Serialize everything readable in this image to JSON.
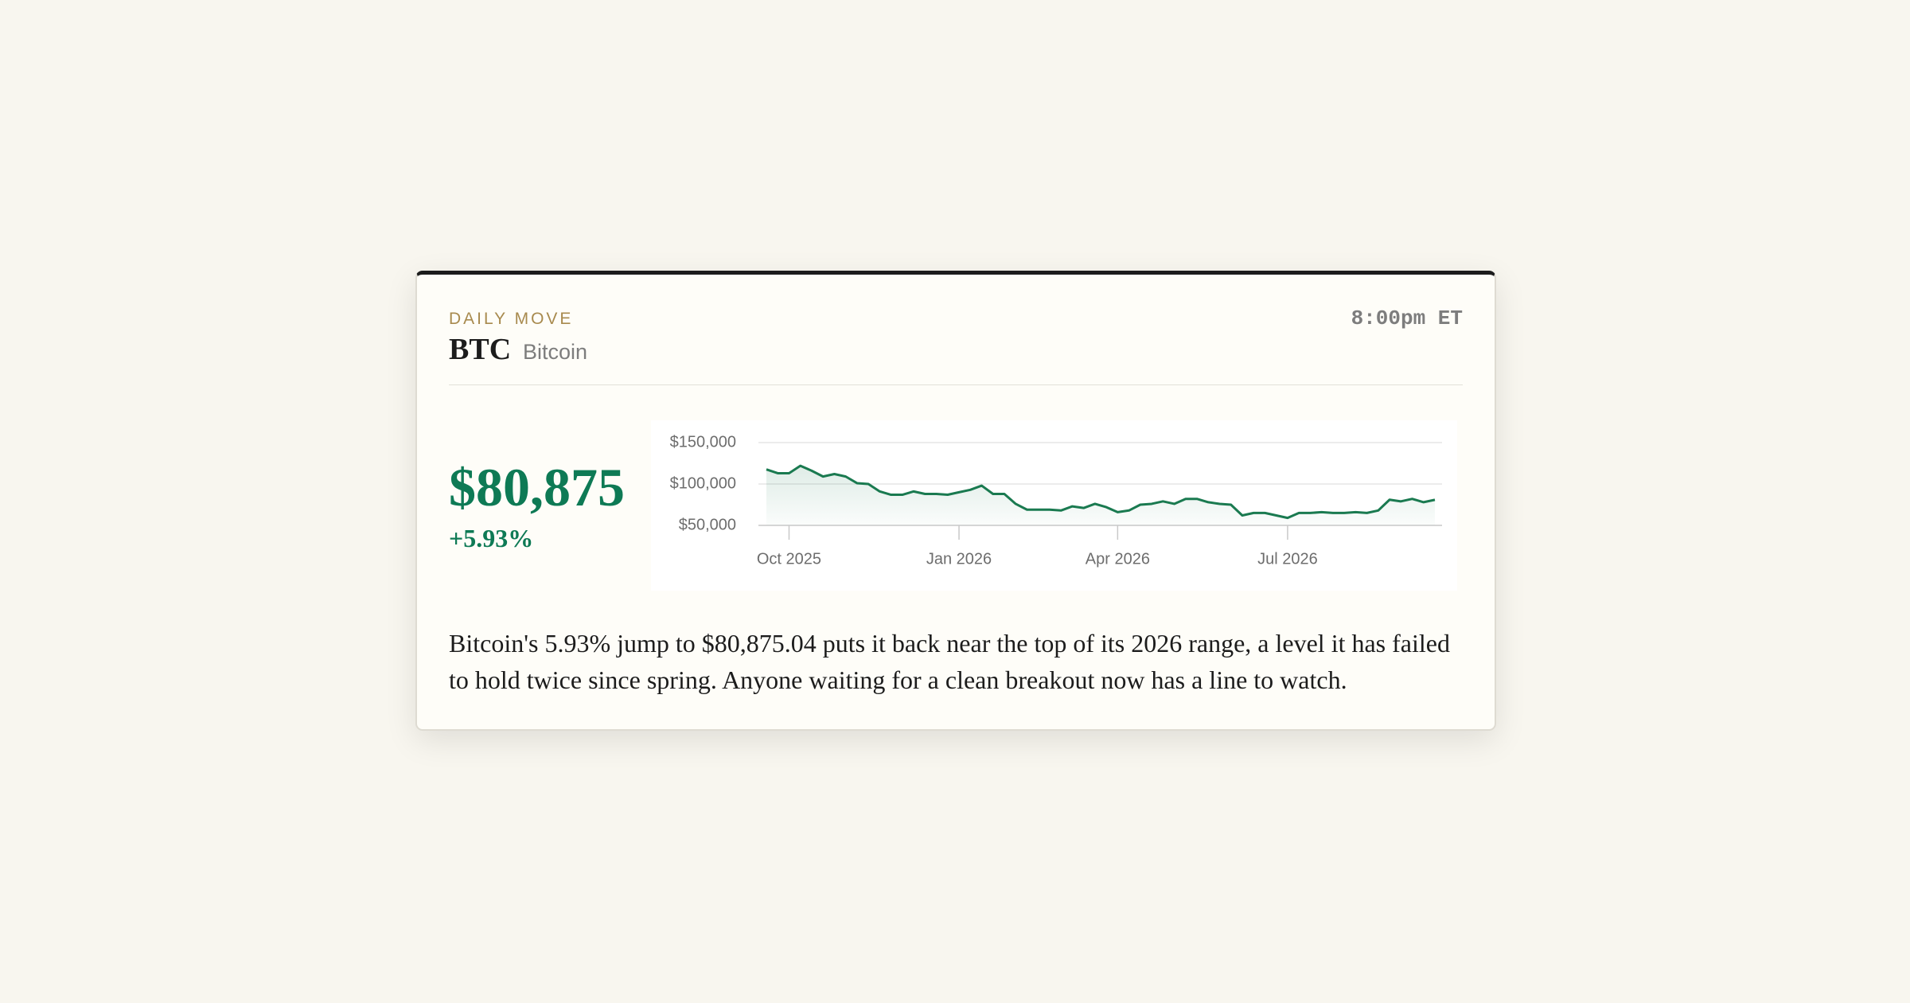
{
  "header": {
    "kicker": "DAILY MOVE",
    "ticker": "BTC",
    "name": "Bitcoin",
    "time": "8:00pm ET"
  },
  "price": "$80,875",
  "change": "+5.93%",
  "chart_data": {
    "type": "line",
    "categories": [
      null,
      null,
      "Oct 2025",
      null,
      null,
      null,
      null,
      null,
      null,
      null,
      null,
      null,
      null,
      null,
      null,
      null,
      null,
      "Jan 2026",
      null,
      null,
      null,
      null,
      null,
      null,
      null,
      null,
      null,
      null,
      null,
      null,
      null,
      "Apr 2026",
      null,
      null,
      null,
      null,
      null,
      null,
      null,
      null,
      null,
      null,
      null,
      null,
      null,
      null,
      "Jul 2026",
      null,
      null,
      null,
      null,
      null,
      null,
      null,
      null,
      null,
      null,
      null,
      null,
      null
    ],
    "series": [
      {
        "name": "BTC",
        "color": "#1a7a50",
        "values": [
          117600,
          113000,
          113000,
          122000,
          116000,
          109000,
          112000,
          109000,
          101000,
          100000,
          91000,
          87000,
          87000,
          91000,
          88000,
          88000,
          87000,
          90000,
          93000,
          98000,
          88000,
          88000,
          76000,
          69000,
          69000,
          69000,
          68000,
          73000,
          71000,
          76000,
          72000,
          66000,
          68000,
          75000,
          76000,
          79000,
          76000,
          82000,
          82000,
          78000,
          76000,
          75000,
          62000,
          65000,
          65000,
          62000,
          59000,
          65000,
          65000,
          66000,
          65000,
          65000,
          66000,
          65000,
          68000,
          81000,
          79000,
          82000,
          78000,
          80875
        ]
      }
    ],
    "ylim": [
      50000,
      150000
    ],
    "yticks": [
      {
        "value": 50000,
        "label": "$50,000"
      },
      {
        "value": 100000,
        "label": "$100,000"
      },
      {
        "value": 150000,
        "label": "$150,000"
      }
    ],
    "grid": true
  },
  "body": "Bitcoin's 5.93% jump to $80,875.04 puts it back near the top of its 2026 range, a level it has failed to hold twice since spring. Anyone waiting for a clean breakout now has a line to watch."
}
